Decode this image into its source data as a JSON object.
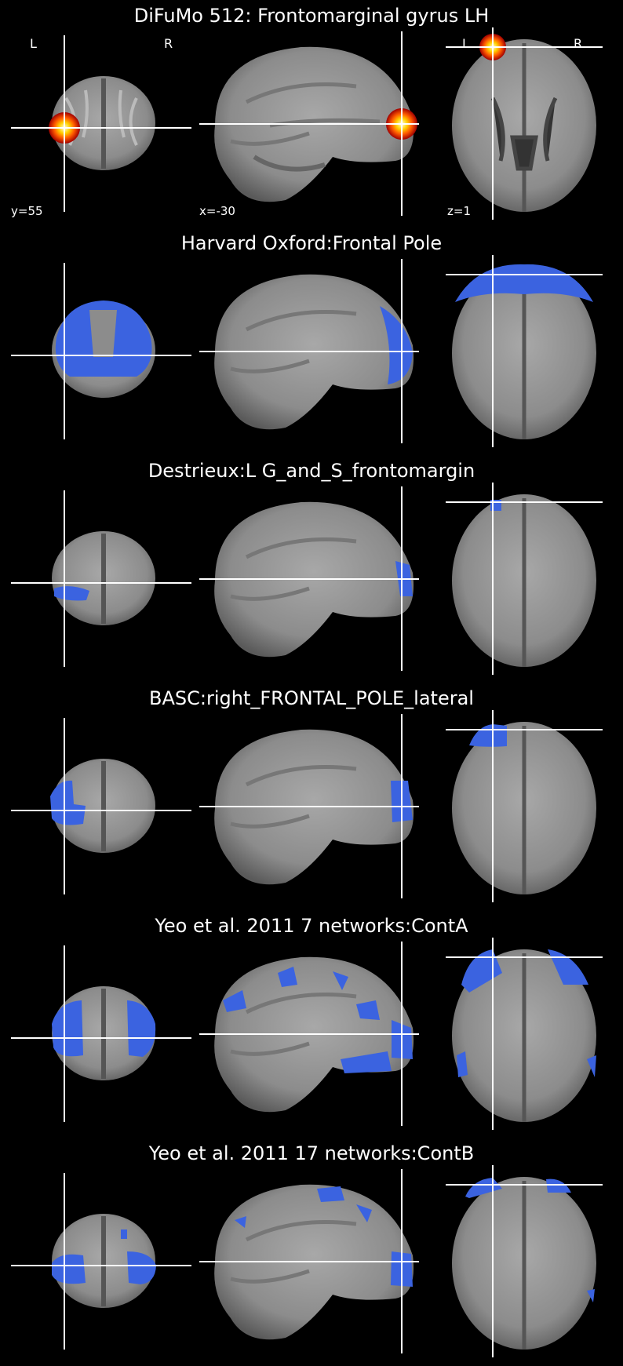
{
  "panels": [
    {
      "title": "DiFuMo 512: Frontomarginal gyrus LH",
      "overlay": "heat",
      "labels": {
        "left": "L",
        "right": "R"
      },
      "coords": {
        "coronal": "y=55",
        "sagittal": "x=-30",
        "axial": "z=1"
      }
    },
    {
      "title": "Harvard Oxford:Frontal Pole",
      "overlay": "blue-frontal-pole"
    },
    {
      "title": "Destrieux:L G_and_S_frontomargin",
      "overlay": "blue-destrieux"
    },
    {
      "title": "BASC:right_FRONTAL_POLE_lateral",
      "overlay": "blue-basc"
    },
    {
      "title": "Yeo et al. 2011 7 networks:ContA",
      "overlay": "blue-yeo7"
    },
    {
      "title": "Yeo et al. 2011 17 networks:ContB",
      "overlay": "blue-yeo17"
    }
  ],
  "colors": {
    "overlay_blue": "#3b63e0",
    "crosshair": "#ffffff",
    "background": "#000000"
  }
}
